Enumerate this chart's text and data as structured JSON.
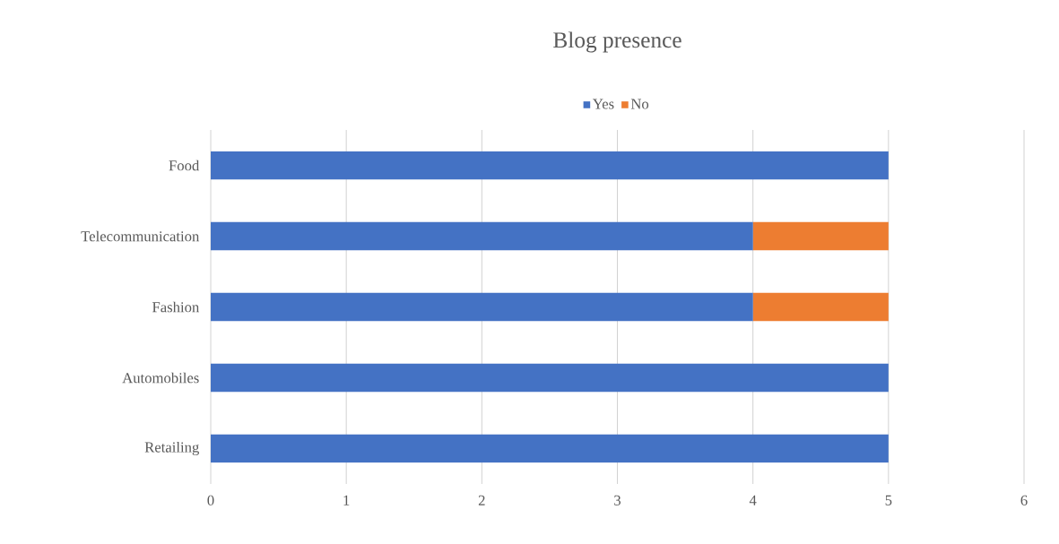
{
  "chart_data": {
    "type": "bar",
    "orientation": "horizontal",
    "stacked": true,
    "title": "Blog presence",
    "categories": [
      "Food",
      "Telecommunication",
      "Fashion",
      "Automobiles",
      "Retailing"
    ],
    "series": [
      {
        "name": "Yes",
        "color": "#4472c4",
        "values": [
          5,
          4,
          4,
          5,
          5
        ]
      },
      {
        "name": "No",
        "color": "#ed7d31",
        "values": [
          0,
          1,
          1,
          0,
          0
        ]
      }
    ],
    "xlim": [
      0,
      6
    ],
    "xticks": [
      0,
      1,
      2,
      3,
      4,
      5,
      6
    ],
    "grid": "x",
    "legend": "top"
  }
}
